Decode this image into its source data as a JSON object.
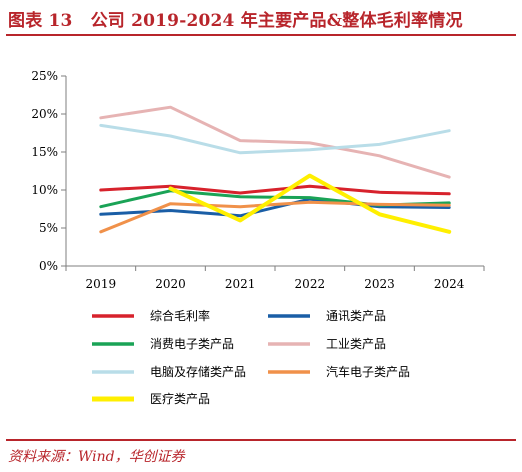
{
  "header": {
    "figure_label": "图表 13",
    "title": "公司 2019-2024 年主要产品&整体毛利率情况"
  },
  "footer": {
    "source": "资料来源：Wind，华创证券"
  },
  "chart_data": {
    "type": "line",
    "categories": [
      "2019",
      "2020",
      "2021",
      "2022",
      "2023",
      "2024"
    ],
    "ylim": [
      0,
      25
    ],
    "yticks": [
      0,
      5,
      10,
      15,
      20,
      25
    ],
    "ytick_labels": [
      "0%",
      "5%",
      "10%",
      "15%",
      "20%",
      "25%"
    ],
    "xlabel": "",
    "ylabel": "",
    "grid": false,
    "legend_position": "bottom",
    "series": [
      {
        "name": "综合毛利率",
        "color": "#d7222c",
        "values": [
          10.0,
          10.5,
          9.6,
          10.5,
          9.7,
          9.5
        ]
      },
      {
        "name": "通讯类产品",
        "color": "#1a5ea6",
        "values": [
          6.8,
          7.3,
          6.6,
          8.8,
          7.8,
          7.7
        ]
      },
      {
        "name": "消费电子类产品",
        "color": "#1aa356",
        "values": [
          7.8,
          9.9,
          9.1,
          9.0,
          8.0,
          8.3
        ]
      },
      {
        "name": "工业类产品",
        "color": "#e6b3b3",
        "values": [
          19.5,
          20.9,
          16.5,
          16.2,
          14.5,
          11.7
        ]
      },
      {
        "name": "电脑及存储类产品",
        "color": "#b9dde8",
        "values": [
          18.5,
          17.1,
          14.9,
          15.3,
          16.0,
          17.8
        ]
      },
      {
        "name": "汽车电子类产品",
        "color": "#f0914a",
        "values": [
          4.5,
          8.2,
          7.8,
          8.4,
          8.1,
          8.0
        ]
      },
      {
        "name": "医疗类产品",
        "color": "#ffef00",
        "values": [
          null,
          10.2,
          6.0,
          11.9,
          6.8,
          4.5
        ]
      }
    ]
  }
}
